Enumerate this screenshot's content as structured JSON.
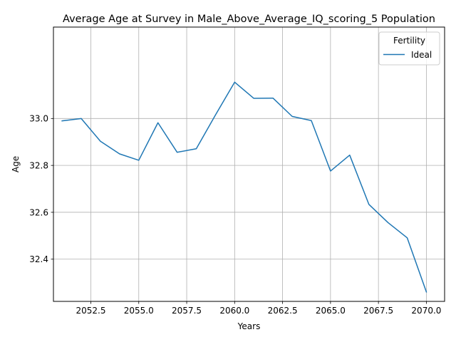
{
  "chart_data": {
    "type": "line",
    "title": "Average Age at Survey in Male_Above_Average_IQ_scoring_5 Population",
    "xlabel": "Years",
    "ylabel": "Age",
    "xlim": [
      2050.55,
      2070.95
    ],
    "ylim": [
      32.22,
      33.39
    ],
    "xticks": [
      2052.5,
      2055.0,
      2057.5,
      2060.0,
      2062.5,
      2065.0,
      2067.5,
      2070.0
    ],
    "xtick_labels": [
      "2052.5",
      "2055.0",
      "2057.5",
      "2060.0",
      "2062.5",
      "2065.0",
      "2067.5",
      "2070.0"
    ],
    "yticks": [
      32.4,
      32.6,
      32.8,
      33.0
    ],
    "ytick_labels": [
      "32.4",
      "32.6",
      "32.8",
      "33.0"
    ],
    "grid": true,
    "legend": {
      "title": "Fertility",
      "placement": "top-right"
    },
    "series": [
      {
        "name": "Ideal",
        "color": "#1f77b4",
        "x": [
          2051,
          2052,
          2053,
          2054,
          2055,
          2056,
          2057,
          2058,
          2059,
          2060,
          2061,
          2062,
          2063,
          2064,
          2065,
          2066,
          2067,
          2068,
          2069,
          2070
        ],
        "y": [
          32.99,
          33.0,
          32.903,
          32.849,
          32.822,
          32.982,
          32.856,
          32.871,
          33.015,
          33.155,
          33.086,
          33.087,
          33.009,
          32.991,
          32.776,
          32.844,
          32.634,
          32.556,
          32.491,
          32.26
        ]
      }
    ]
  }
}
